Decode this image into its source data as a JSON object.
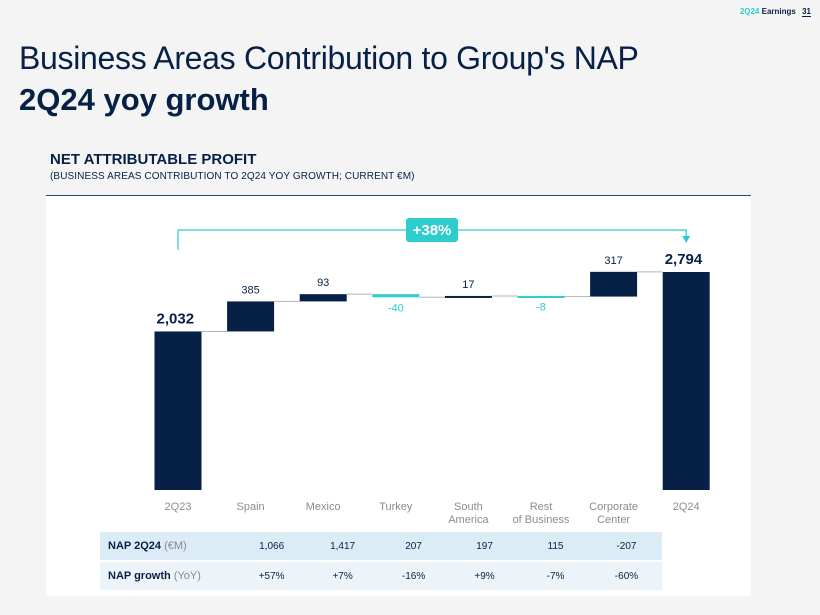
{
  "header": {
    "quarter": "2Q24",
    "earnings": "Earnings",
    "page": "31"
  },
  "title": {
    "line1": "Business Areas Contribution to Group's NAP",
    "line2": "2Q24 yoy growth"
  },
  "section": {
    "title": "NET ATTRIBUTABLE PROFIT",
    "subtitle": "(BUSINESS AREAS CONTRIBUTION TO 2Q24 YOY GROWTH; CURRENT €M)"
  },
  "chart_data": {
    "type": "bar",
    "subtype": "waterfall",
    "categories": [
      "2Q23",
      "Spain",
      "Mexico",
      "Turkey",
      "South America",
      "Rest of Business",
      "Corporate Center",
      "2Q24"
    ],
    "values": [
      2032,
      385,
      93,
      -40,
      17,
      -8,
      317,
      2794
    ],
    "value_labels": [
      "2,032",
      "385",
      "93",
      "-40",
      "17",
      "-8",
      "317",
      "2,794"
    ],
    "kinds": [
      "total",
      "delta",
      "delta",
      "delta",
      "delta",
      "delta",
      "delta",
      "total"
    ],
    "growth_label": "+38%",
    "ylim": [
      0,
      2950
    ],
    "colors": {
      "positive": "#072146",
      "negative": "#2dcccd",
      "total": "#072146",
      "connector": "#b5b5b5"
    }
  },
  "table": {
    "rows": [
      {
        "label": "NAP 2Q24",
        "unit": "(€M)",
        "values": [
          "1,066",
          "1,417",
          "207",
          "197",
          "115",
          "-207"
        ]
      },
      {
        "label": "NAP growth",
        "unit": "(YoY)",
        "values": [
          "+57%",
          "+7%",
          "-16%",
          "+9%",
          "-7%",
          "-60%"
        ]
      }
    ]
  }
}
